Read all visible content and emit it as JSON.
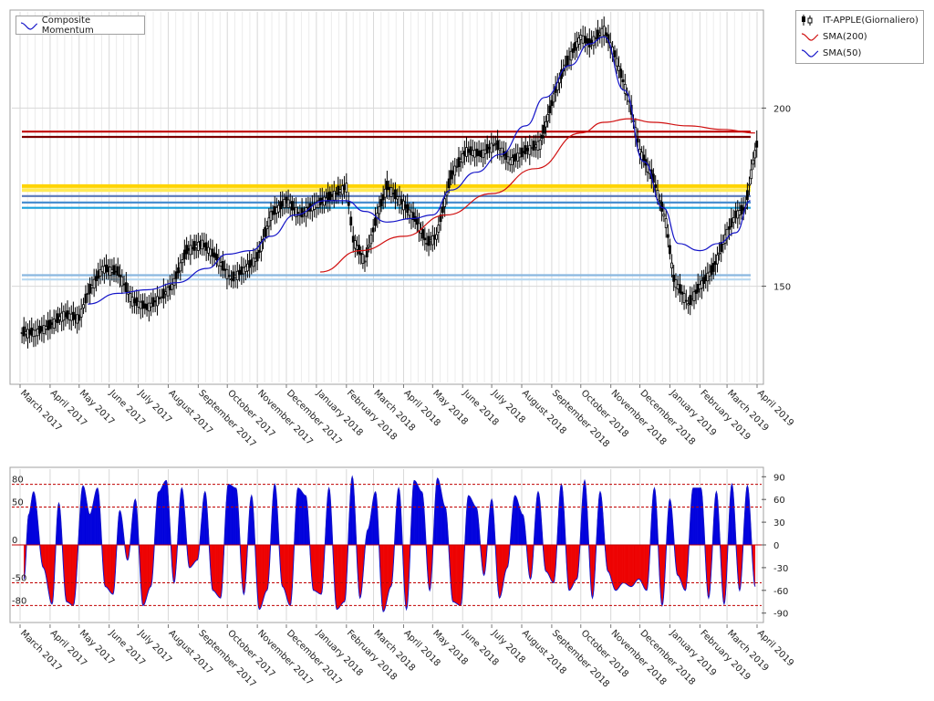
{
  "legend_main": [
    {
      "label": "IT-APPLE(Giornaliero)",
      "icon": "candlestick-icon",
      "color": "#000000"
    },
    {
      "label": "SMA(200)",
      "icon": "line-red-icon",
      "color": "#d01010"
    },
    {
      "label": "SMA(50)",
      "icon": "line-blue-icon",
      "color": "#1414c8"
    }
  ],
  "legend_indicator": {
    "label": "Composite Momentum",
    "icon": "line-blue-icon",
    "color": "#1414c8"
  },
  "colors": {
    "price": "#000000",
    "sma200": "#d01010",
    "sma50": "#1414c8",
    "pos_fill": "#0000dd",
    "neg_fill": "#ee0000",
    "grid": "#d8d8d8"
  },
  "chart_data": [
    {
      "type": "line",
      "title": "",
      "xlabel": "",
      "ylabel": "",
      "x_range": [
        "2017-03-01",
        "2019-04-01"
      ],
      "ylim": [
        123,
        227
      ],
      "y_ticks": [
        150,
        200
      ],
      "x_ticks": [
        "March 2017",
        "April 2017",
        "May 2017",
        "June 2017",
        "July 2017",
        "August 2017",
        "September 2017",
        "October 2017",
        "November 2017",
        "December 2017",
        "January 2018",
        "February 2018",
        "March 2018",
        "April 2018",
        "May 2018",
        "June 2018",
        "July 2018",
        "August 2018",
        "September 2018",
        "October 2018",
        "November 2018",
        "December 2018",
        "January 2019",
        "February 2019",
        "March 2019",
        "April 2019"
      ],
      "grid": true,
      "series": [
        {
          "name": "IT-APPLE(Giornaliero)",
          "style": "candlestick",
          "dates": [
            "2017-03-03",
            "2017-03-17",
            "2017-04-01",
            "2017-04-15",
            "2017-05-01",
            "2017-05-10",
            "2017-05-25",
            "2017-06-10",
            "2017-06-25",
            "2017-07-10",
            "2017-07-25",
            "2017-08-05",
            "2017-08-20",
            "2017-09-05",
            "2017-09-20",
            "2017-10-05",
            "2017-10-20",
            "2017-11-01",
            "2017-11-15",
            "2017-12-01",
            "2017-12-15",
            "2018-01-01",
            "2018-01-15",
            "2018-02-01",
            "2018-02-08",
            "2018-02-20",
            "2018-03-05",
            "2018-03-15",
            "2018-04-01",
            "2018-04-15",
            "2018-04-25",
            "2018-05-05",
            "2018-05-20",
            "2018-06-05",
            "2018-06-20",
            "2018-07-05",
            "2018-07-20",
            "2018-08-05",
            "2018-08-20",
            "2018-09-05",
            "2018-09-15",
            "2018-10-01",
            "2018-10-10",
            "2018-10-25",
            "2018-11-05",
            "2018-11-20",
            "2018-12-01",
            "2018-12-15",
            "2018-12-28",
            "2019-01-05",
            "2019-01-20",
            "2019-02-01",
            "2019-02-15",
            "2019-03-01",
            "2019-03-10",
            "2019-03-20",
            "2019-03-28"
          ],
          "close": [
            137,
            139,
            142,
            141,
            148,
            155,
            154,
            146,
            144,
            147,
            150,
            160,
            162,
            158,
            152,
            155,
            158,
            170,
            174,
            170,
            173,
            175,
            178,
            163,
            157,
            170,
            178,
            173,
            168,
            162,
            164,
            181,
            188,
            187,
            190,
            185,
            188,
            190,
            205,
            212,
            220,
            218,
            222,
            215,
            202,
            188,
            180,
            168,
            152,
            145,
            150,
            155,
            165,
            170,
            172,
            185,
            192
          ]
        },
        {
          "name": "SMA(200)",
          "style": "line",
          "dates": [
            "2018-01-05",
            "2018-02-15",
            "2018-04-01",
            "2018-05-15",
            "2018-07-01",
            "2018-08-15",
            "2018-10-01",
            "2018-10-25",
            "2018-11-20",
            "2018-12-15",
            "2019-01-20",
            "2019-02-25",
            "2019-03-30"
          ],
          "values": [
            154,
            160,
            164,
            170,
            176,
            183,
            193,
            196,
            197,
            196,
            195,
            194,
            193
          ]
        },
        {
          "name": "SMA(50)",
          "style": "line",
          "dates": [
            "2017-05-10",
            "2017-06-10",
            "2017-07-10",
            "2017-08-10",
            "2017-09-10",
            "2017-10-01",
            "2017-10-25",
            "2017-11-15",
            "2017-12-10",
            "2018-01-10",
            "2018-02-01",
            "2018-02-20",
            "2018-03-15",
            "2018-04-10",
            "2018-05-01",
            "2018-05-20",
            "2018-06-15",
            "2018-07-10",
            "2018-08-05",
            "2018-08-25",
            "2018-09-20",
            "2018-10-10",
            "2018-10-25",
            "2018-11-15",
            "2018-12-05",
            "2018-12-25",
            "2019-01-10",
            "2019-02-01",
            "2019-02-20",
            "2019-03-10",
            "2019-03-25"
          ],
          "values": [
            145,
            148,
            149,
            151,
            155,
            159,
            160,
            164,
            170,
            174,
            174,
            171,
            168,
            169,
            170,
            177,
            182,
            187,
            195,
            203,
            212,
            218,
            220,
            205,
            185,
            172,
            162,
            160,
            162,
            165,
            174
          ]
        }
      ],
      "horizontal_levels": [
        {
          "value": 193.4,
          "color": "#c00000"
        },
        {
          "value": 191.9,
          "color": "#7a0000"
        },
        {
          "value": 178.1,
          "color": "#ffd400"
        },
        {
          "value": 177.0,
          "color": "#ffea55"
        },
        {
          "value": 175.3,
          "color": "#5a78b8"
        },
        {
          "value": 173.5,
          "color": "#4a8fd0"
        },
        {
          "value": 172.0,
          "color": "#1aa0dc"
        },
        {
          "value": 153.1,
          "color": "#8ab8e0"
        },
        {
          "value": 151.9,
          "color": "#b8d8f0"
        }
      ]
    },
    {
      "type": "area",
      "title": "",
      "xlabel": "",
      "ylabel": "",
      "x_range": [
        "2017-03-01",
        "2019-04-01"
      ],
      "ylim": [
        -100,
        100
      ],
      "y_ticks_left": [
        80,
        50,
        0,
        -50,
        -80
      ],
      "y_ticks_right": [
        90,
        60,
        30,
        0,
        -30,
        -60,
        -90
      ],
      "reference_lines": [
        80,
        50,
        -50,
        -80
      ],
      "x_ticks": [
        "March 2017",
        "April 2017",
        "May 2017",
        "June 2017",
        "July 2017",
        "August 2017",
        "September 2017",
        "October 2017",
        "November 2017",
        "December 2017",
        "January 2018",
        "February 2018",
        "March 2018",
        "April 2018",
        "May 2018",
        "June 2018",
        "July 2018",
        "August 2018",
        "September 2018",
        "October 2018",
        "November 2018",
        "December 2018",
        "January 2019",
        "February 2019",
        "March 2019",
        "April 2019"
      ],
      "series": [
        {
          "name": "Composite Momentum",
          "dates": [
            "2017-03-05",
            "2017-03-10",
            "2017-03-15",
            "2017-03-25",
            "2017-04-03",
            "2017-04-10",
            "2017-04-18",
            "2017-04-25",
            "2017-05-05",
            "2017-05-12",
            "2017-05-20",
            "2017-05-28",
            "2017-06-05",
            "2017-06-12",
            "2017-06-20",
            "2017-06-28",
            "2017-07-06",
            "2017-07-14",
            "2017-07-22",
            "2017-07-30",
            "2017-08-07",
            "2017-08-15",
            "2017-08-23",
            "2017-08-31",
            "2017-09-08",
            "2017-09-16",
            "2017-09-24",
            "2017-10-02",
            "2017-10-10",
            "2017-10-18",
            "2017-10-26",
            "2017-11-03",
            "2017-11-11",
            "2017-11-19",
            "2017-11-27",
            "2017-12-05",
            "2017-12-13",
            "2017-12-21",
            "2017-12-29",
            "2018-01-06",
            "2018-01-14",
            "2018-01-22",
            "2018-01-30",
            "2018-02-07",
            "2018-02-15",
            "2018-02-23",
            "2018-03-03",
            "2018-03-11",
            "2018-03-19",
            "2018-03-27",
            "2018-04-04",
            "2018-04-12",
            "2018-04-20",
            "2018-04-28",
            "2018-05-06",
            "2018-05-14",
            "2018-05-22",
            "2018-05-30",
            "2018-06-07",
            "2018-06-15",
            "2018-06-23",
            "2018-07-01",
            "2018-07-09",
            "2018-07-17",
            "2018-07-25",
            "2018-08-02",
            "2018-08-10",
            "2018-08-18",
            "2018-08-26",
            "2018-09-03",
            "2018-09-11",
            "2018-09-19",
            "2018-09-27",
            "2018-10-05",
            "2018-10-13",
            "2018-10-21",
            "2018-10-29",
            "2018-11-06",
            "2018-11-14",
            "2018-11-22",
            "2018-11-30",
            "2018-12-08",
            "2018-12-16",
            "2018-12-24",
            "2019-01-01",
            "2019-01-09",
            "2019-01-17",
            "2019-01-25",
            "2019-02-02",
            "2019-02-10",
            "2019-02-18",
            "2019-02-26",
            "2019-03-06",
            "2019-03-14",
            "2019-03-22",
            "2019-03-30"
          ],
          "values": [
            -45,
            40,
            70,
            -30,
            -78,
            55,
            -75,
            -80,
            78,
            40,
            75,
            -55,
            -65,
            45,
            -20,
            60,
            -80,
            -55,
            70,
            85,
            -50,
            75,
            -30,
            -20,
            70,
            -60,
            -70,
            80,
            75,
            -65,
            65,
            -85,
            -60,
            80,
            -55,
            -80,
            75,
            65,
            -60,
            -65,
            75,
            -85,
            -75,
            90,
            -70,
            20,
            70,
            -88,
            -55,
            75,
            -85,
            85,
            70,
            -60,
            88,
            50,
            -75,
            -80,
            65,
            50,
            -40,
            60,
            -70,
            -30,
            65,
            40,
            -45,
            70,
            -35,
            -50,
            80,
            -60,
            -45,
            85,
            -70,
            70,
            -35,
            -60,
            -50,
            -55,
            -45,
            -60,
            75,
            -80,
            60,
            -40,
            -60,
            75,
            75,
            -70,
            70,
            -78,
            80,
            -60,
            78,
            -55
          ]
        }
      ]
    }
  ]
}
